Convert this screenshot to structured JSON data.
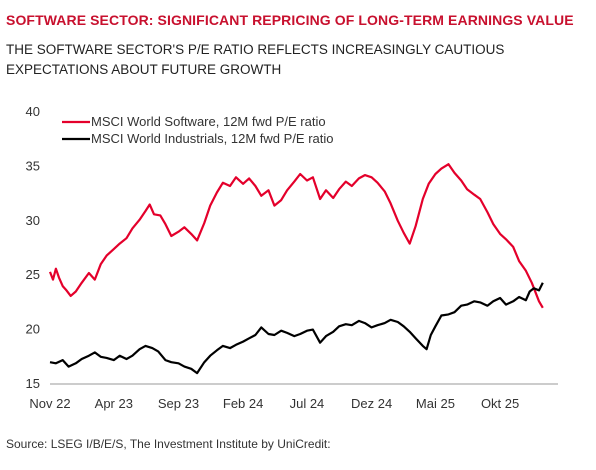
{
  "header": {
    "title": "SOFTWARE SECTOR: SIGNIFICANT REPRICING OF LONG-TERM EARNINGS VALUE",
    "subtitle": "THE SOFTWARE SECTOR'S P/E RATIO REFLECTS INCREASINGLY CAUTIOUS EXPECTATIONS ABOUT FUTURE GROWTH"
  },
  "footer": {
    "source": "Source: LSEG I/B/E/S, The Investment Institute by UniCredit:"
  },
  "chart_data": {
    "type": "line",
    "title": "",
    "xlabel": "",
    "ylabel": "",
    "ylim": [
      15,
      40
    ],
    "yticks": [
      15,
      20,
      25,
      30,
      35,
      40
    ],
    "xlim": [
      "2022-11-01",
      "2026-02-15"
    ],
    "xticks": [
      {
        "label": "Nov 22",
        "date": "2022-11-01"
      },
      {
        "label": "Apr 23",
        "date": "2023-04-01"
      },
      {
        "label": "Sep 23",
        "date": "2023-09-01"
      },
      {
        "label": "Feb 24",
        "date": "2024-02-01"
      },
      {
        "label": "Jul 24",
        "date": "2024-07-01"
      },
      {
        "label": "Dez 24",
        "date": "2024-12-01"
      },
      {
        "label": "Mai 25",
        "date": "2025-05-01"
      },
      {
        "label": "Okt 25",
        "date": "2025-10-01"
      }
    ],
    "grid": false,
    "legend_position": "top-left",
    "series": [
      {
        "name": "MSCI World Software, 12M fwd P/E ratio",
        "color": "#e4002b",
        "points": [
          [
            "2022-11-01",
            25.3
          ],
          [
            "2022-11-08",
            24.6
          ],
          [
            "2022-11-15",
            25.6
          ],
          [
            "2022-11-22",
            24.8
          ],
          [
            "2022-12-01",
            24.0
          ],
          [
            "2022-12-10",
            23.6
          ],
          [
            "2022-12-20",
            23.1
          ],
          [
            "2023-01-01",
            23.5
          ],
          [
            "2023-01-15",
            24.3
          ],
          [
            "2023-02-01",
            25.2
          ],
          [
            "2023-02-15",
            24.6
          ],
          [
            "2023-03-01",
            26.0
          ],
          [
            "2023-03-15",
            26.8
          ],
          [
            "2023-04-01",
            27.4
          ],
          [
            "2023-04-15",
            27.9
          ],
          [
            "2023-05-01",
            28.4
          ],
          [
            "2023-05-15",
            29.3
          ],
          [
            "2023-06-01",
            30.1
          ],
          [
            "2023-06-15",
            30.9
          ],
          [
            "2023-06-25",
            31.5
          ],
          [
            "2023-07-05",
            30.6
          ],
          [
            "2023-07-20",
            30.5
          ],
          [
            "2023-08-01",
            29.7
          ],
          [
            "2023-08-15",
            28.6
          ],
          [
            "2023-09-01",
            29.0
          ],
          [
            "2023-09-15",
            29.4
          ],
          [
            "2023-10-01",
            28.8
          ],
          [
            "2023-10-15",
            28.2
          ],
          [
            "2023-11-01",
            29.8
          ],
          [
            "2023-11-15",
            31.4
          ],
          [
            "2023-12-01",
            32.6
          ],
          [
            "2023-12-15",
            33.5
          ],
          [
            "2024-01-01",
            33.2
          ],
          [
            "2024-01-15",
            34.0
          ],
          [
            "2024-02-01",
            33.4
          ],
          [
            "2024-02-15",
            33.9
          ],
          [
            "2024-03-01",
            33.2
          ],
          [
            "2024-03-15",
            32.3
          ],
          [
            "2024-04-01",
            32.8
          ],
          [
            "2024-04-15",
            31.4
          ],
          [
            "2024-05-01",
            31.9
          ],
          [
            "2024-05-15",
            32.8
          ],
          [
            "2024-06-01",
            33.6
          ],
          [
            "2024-06-15",
            34.3
          ],
          [
            "2024-07-01",
            33.7
          ],
          [
            "2024-07-15",
            34.0
          ],
          [
            "2024-08-01",
            32.0
          ],
          [
            "2024-08-15",
            32.8
          ],
          [
            "2024-09-01",
            32.1
          ],
          [
            "2024-09-15",
            32.9
          ],
          [
            "2024-10-01",
            33.6
          ],
          [
            "2024-10-15",
            33.2
          ],
          [
            "2024-11-01",
            33.9
          ],
          [
            "2024-11-15",
            34.2
          ],
          [
            "2024-12-01",
            34.0
          ],
          [
            "2024-12-15",
            33.5
          ],
          [
            "2025-01-01",
            32.7
          ],
          [
            "2025-01-15",
            31.6
          ],
          [
            "2025-02-01",
            30.0
          ],
          [
            "2025-02-15",
            28.9
          ],
          [
            "2025-03-01",
            27.9
          ],
          [
            "2025-03-15",
            29.5
          ],
          [
            "2025-04-01",
            32.0
          ],
          [
            "2025-04-15",
            33.4
          ],
          [
            "2025-05-01",
            34.3
          ],
          [
            "2025-05-15",
            34.8
          ],
          [
            "2025-06-01",
            35.2
          ],
          [
            "2025-06-15",
            34.4
          ],
          [
            "2025-07-01",
            33.7
          ],
          [
            "2025-07-15",
            32.9
          ],
          [
            "2025-08-01",
            32.4
          ],
          [
            "2025-08-15",
            32.0
          ],
          [
            "2025-09-01",
            30.8
          ],
          [
            "2025-09-15",
            29.7
          ],
          [
            "2025-10-01",
            28.8
          ],
          [
            "2025-10-15",
            28.3
          ],
          [
            "2025-11-01",
            27.6
          ],
          [
            "2025-11-15",
            26.3
          ],
          [
            "2025-12-01",
            25.4
          ],
          [
            "2025-12-15",
            24.3
          ],
          [
            "2026-01-01",
            22.6
          ],
          [
            "2026-01-10",
            22.0
          ]
        ]
      },
      {
        "name": "MSCI World Industrials, 12M fwd P/E ratio",
        "color": "#000000",
        "points": [
          [
            "2022-11-01",
            17.0
          ],
          [
            "2022-11-15",
            16.9
          ],
          [
            "2022-12-01",
            17.2
          ],
          [
            "2022-12-15",
            16.6
          ],
          [
            "2023-01-01",
            16.9
          ],
          [
            "2023-01-15",
            17.3
          ],
          [
            "2023-02-01",
            17.6
          ],
          [
            "2023-02-15",
            17.9
          ],
          [
            "2023-03-01",
            17.5
          ],
          [
            "2023-03-15",
            17.4
          ],
          [
            "2023-04-01",
            17.2
          ],
          [
            "2023-04-15",
            17.6
          ],
          [
            "2023-05-01",
            17.3
          ],
          [
            "2023-05-15",
            17.6
          ],
          [
            "2023-06-01",
            18.2
          ],
          [
            "2023-06-15",
            18.5
          ],
          [
            "2023-07-01",
            18.3
          ],
          [
            "2023-07-15",
            18.0
          ],
          [
            "2023-08-01",
            17.2
          ],
          [
            "2023-08-15",
            17.0
          ],
          [
            "2023-09-01",
            16.9
          ],
          [
            "2023-09-15",
            16.6
          ],
          [
            "2023-10-01",
            16.4
          ],
          [
            "2023-10-15",
            16.0
          ],
          [
            "2023-11-01",
            17.0
          ],
          [
            "2023-11-15",
            17.6
          ],
          [
            "2023-12-01",
            18.1
          ],
          [
            "2023-12-15",
            18.5
          ],
          [
            "2024-01-01",
            18.3
          ],
          [
            "2024-01-15",
            18.6
          ],
          [
            "2024-02-01",
            18.9
          ],
          [
            "2024-02-15",
            19.2
          ],
          [
            "2024-03-01",
            19.5
          ],
          [
            "2024-03-15",
            20.2
          ],
          [
            "2024-04-01",
            19.6
          ],
          [
            "2024-04-15",
            19.5
          ],
          [
            "2024-05-01",
            19.9
          ],
          [
            "2024-05-15",
            19.7
          ],
          [
            "2024-06-01",
            19.4
          ],
          [
            "2024-06-15",
            19.6
          ],
          [
            "2024-07-01",
            19.9
          ],
          [
            "2024-07-15",
            20.0
          ],
          [
            "2024-08-01",
            18.8
          ],
          [
            "2024-08-15",
            19.4
          ],
          [
            "2024-09-01",
            19.8
          ],
          [
            "2024-09-15",
            20.3
          ],
          [
            "2024-10-01",
            20.5
          ],
          [
            "2024-10-15",
            20.4
          ],
          [
            "2024-11-01",
            20.8
          ],
          [
            "2024-11-15",
            20.6
          ],
          [
            "2024-12-01",
            20.2
          ],
          [
            "2024-12-15",
            20.4
          ],
          [
            "2025-01-01",
            20.6
          ],
          [
            "2025-01-15",
            20.9
          ],
          [
            "2025-02-01",
            20.7
          ],
          [
            "2025-02-15",
            20.3
          ],
          [
            "2025-03-01",
            19.8
          ],
          [
            "2025-03-15",
            19.2
          ],
          [
            "2025-04-01",
            18.5
          ],
          [
            "2025-04-10",
            18.2
          ],
          [
            "2025-04-20",
            19.5
          ],
          [
            "2025-05-01",
            20.3
          ],
          [
            "2025-05-15",
            21.3
          ],
          [
            "2025-06-01",
            21.4
          ],
          [
            "2025-06-15",
            21.6
          ],
          [
            "2025-07-01",
            22.2
          ],
          [
            "2025-07-15",
            22.3
          ],
          [
            "2025-08-01",
            22.6
          ],
          [
            "2025-08-15",
            22.5
          ],
          [
            "2025-09-01",
            22.2
          ],
          [
            "2025-09-15",
            22.6
          ],
          [
            "2025-10-01",
            22.9
          ],
          [
            "2025-10-15",
            22.3
          ],
          [
            "2025-11-01",
            22.6
          ],
          [
            "2025-11-15",
            23.0
          ],
          [
            "2025-12-01",
            22.7
          ],
          [
            "2025-12-10",
            23.5
          ],
          [
            "2025-12-20",
            23.8
          ],
          [
            "2026-01-01",
            23.6
          ],
          [
            "2026-01-10",
            24.3
          ]
        ]
      }
    ]
  }
}
